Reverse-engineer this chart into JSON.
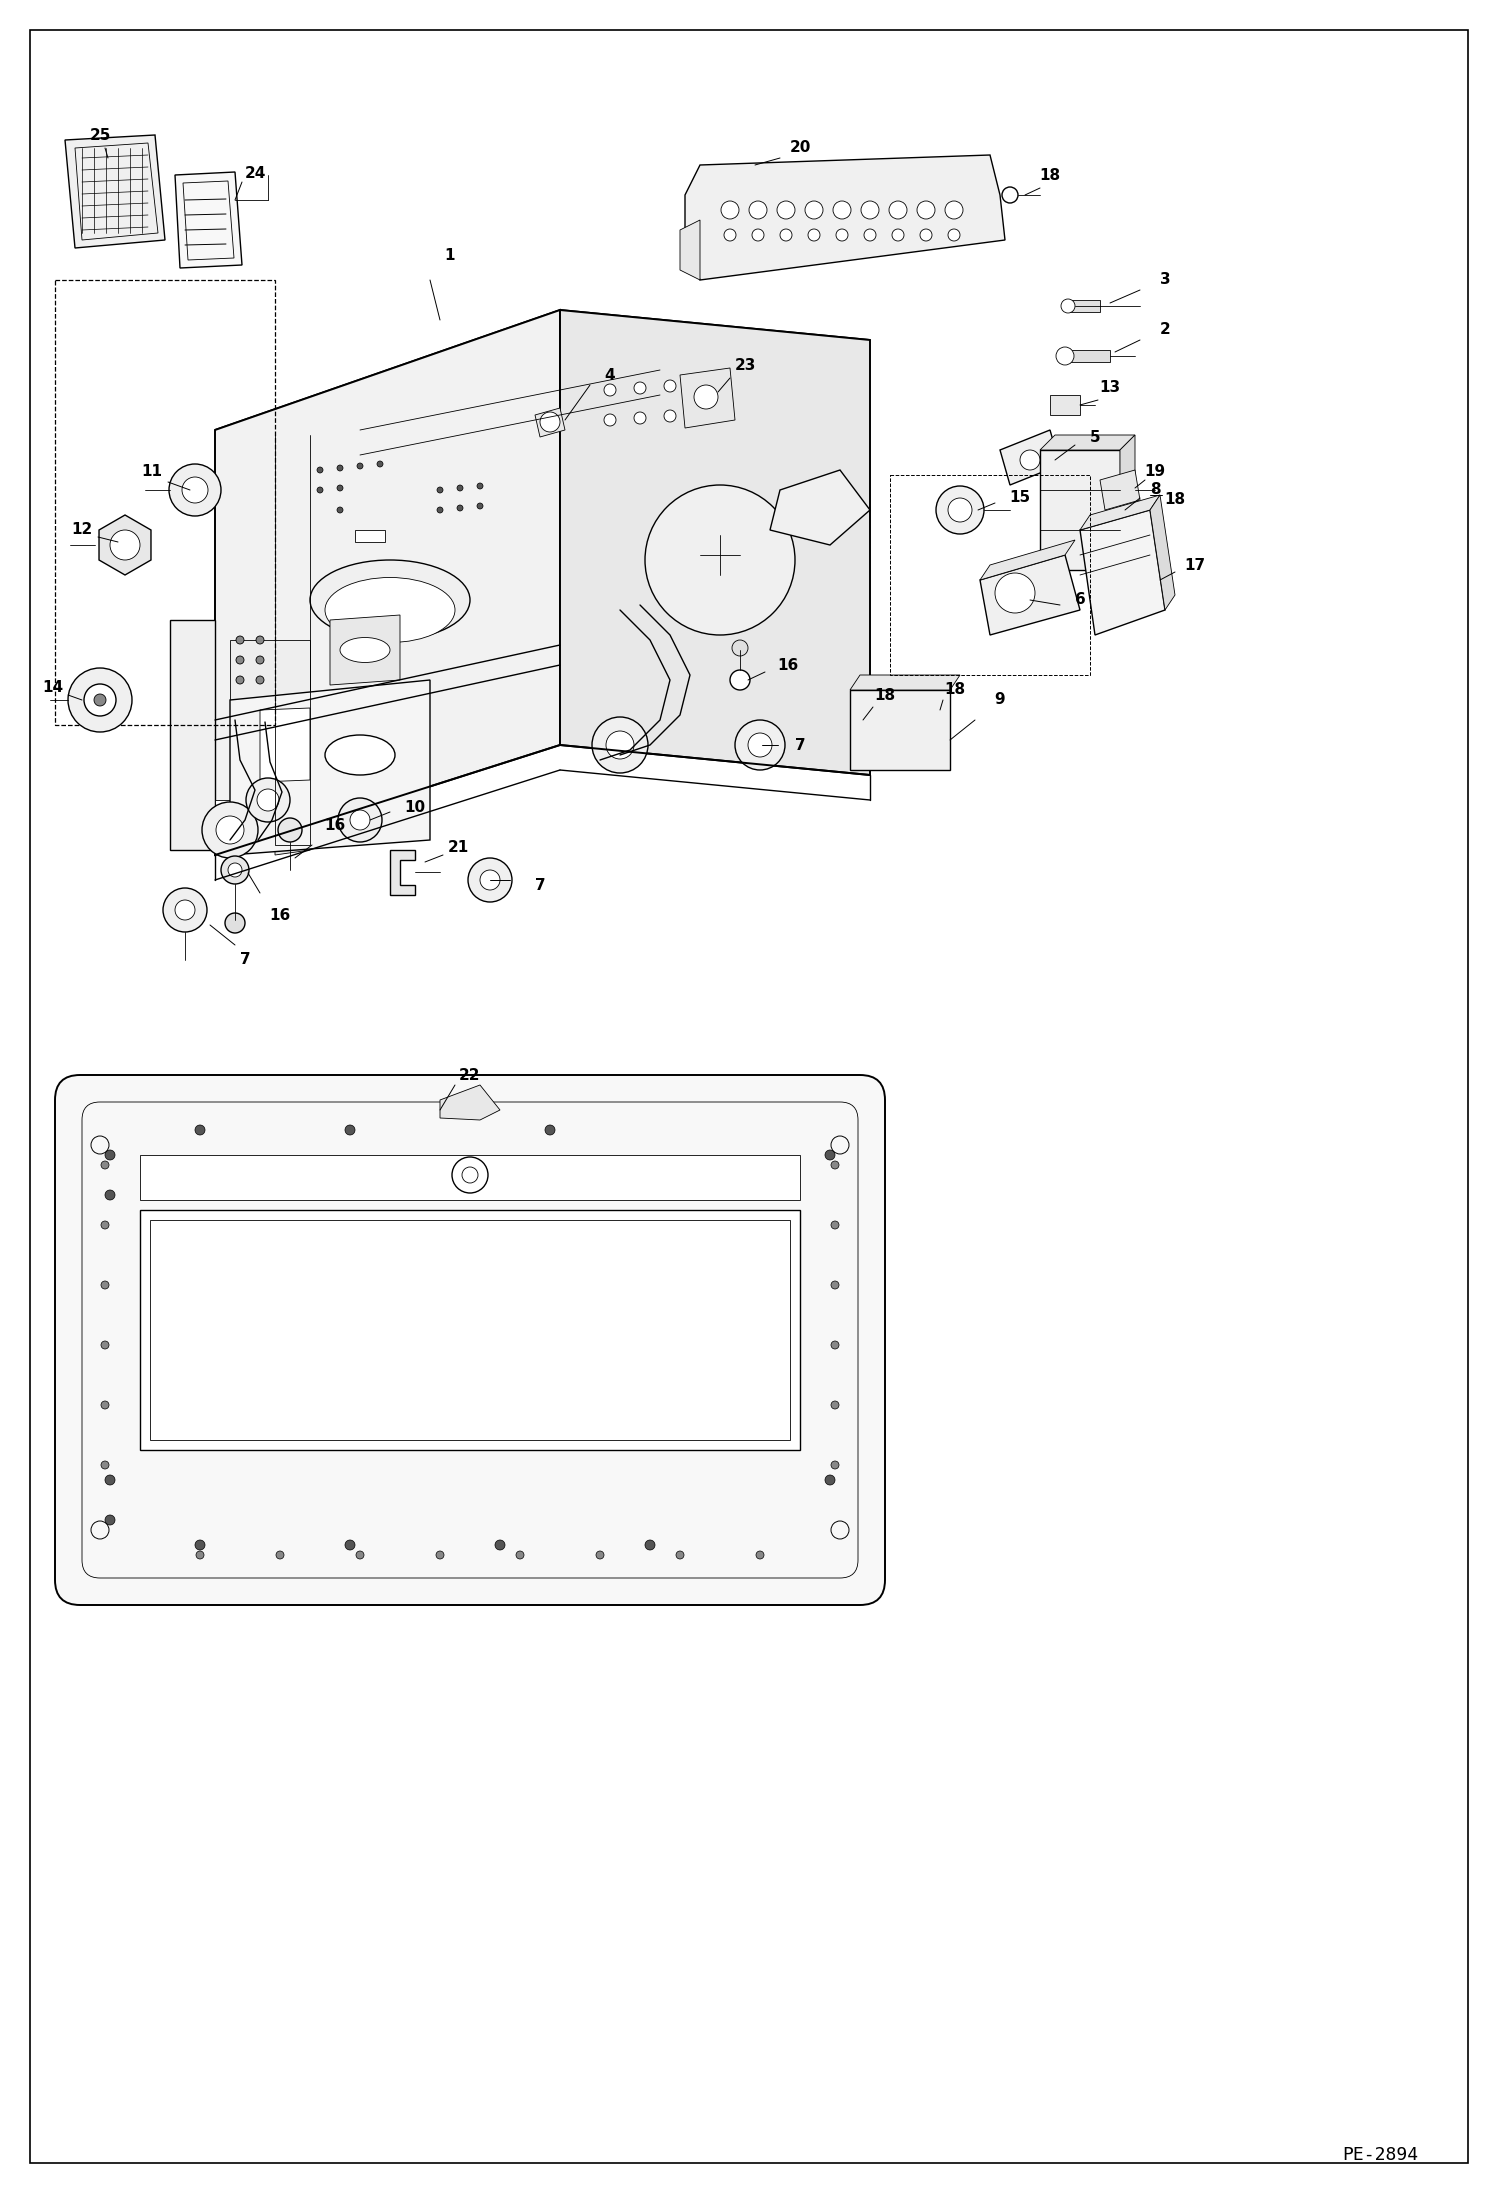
{
  "page_id": "PE-2894",
  "bg_color": "#ffffff",
  "lc": "#000000",
  "tc": "#000000",
  "lw": 1.0,
  "lw_thin": 0.6,
  "lw_thick": 1.4,
  "label_fs": 11,
  "label_fw": "bold",
  "pid_fs": 13,
  "fig_w": 14.98,
  "fig_h": 21.93
}
